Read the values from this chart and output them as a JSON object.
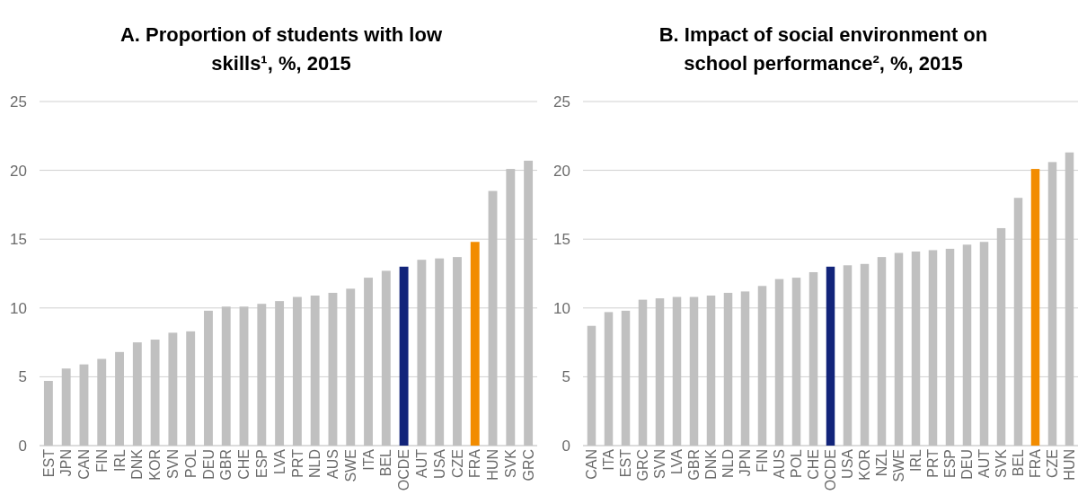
{
  "chart_data": [
    {
      "type": "bar",
      "title": "A.   Proportion of students with low skills¹, %, 2015",
      "categories": [
        "EST",
        "JPN",
        "CAN",
        "FIN",
        "IRL",
        "DNK",
        "KOR",
        "SVN",
        "POL",
        "DEU",
        "GBR",
        "CHE",
        "ESP",
        "LVA",
        "PRT",
        "NLD",
        "AUS",
        "SWE",
        "ITA",
        "BEL",
        "OCDE",
        "AUT",
        "USA",
        "CZE",
        "FRA",
        "HUN",
        "SVK",
        "GRC"
      ],
      "values": [
        4.7,
        5.6,
        5.9,
        6.3,
        6.8,
        7.5,
        7.7,
        8.2,
        8.3,
        9.8,
        10.1,
        10.1,
        10.3,
        10.5,
        10.8,
        10.9,
        11.1,
        11.4,
        12.2,
        12.7,
        13.0,
        13.5,
        13.6,
        13.7,
        14.8,
        18.5,
        20.1,
        20.7
      ],
      "colors": [
        "#c0c0c0",
        "#c0c0c0",
        "#c0c0c0",
        "#c0c0c0",
        "#c0c0c0",
        "#c0c0c0",
        "#c0c0c0",
        "#c0c0c0",
        "#c0c0c0",
        "#c0c0c0",
        "#c0c0c0",
        "#c0c0c0",
        "#c0c0c0",
        "#c0c0c0",
        "#c0c0c0",
        "#c0c0c0",
        "#c0c0c0",
        "#c0c0c0",
        "#c0c0c0",
        "#c0c0c0",
        "#12247a",
        "#c0c0c0",
        "#c0c0c0",
        "#c0c0c0",
        "#f28c00",
        "#c0c0c0",
        "#c0c0c0",
        "#c0c0c0"
      ],
      "ylim": [
        0,
        25
      ],
      "yticks": [
        0,
        5,
        10,
        15,
        20,
        25
      ],
      "grid": "y"
    },
    {
      "type": "bar",
      "title": "B.   Impact of social environment on school performance², %, 2015",
      "categories": [
        "CAN",
        "ITA",
        "EST",
        "GRC",
        "SVN",
        "LVA",
        "GBR",
        "DNK",
        "NLD",
        "JPN",
        "FIN",
        "AUS",
        "POL",
        "CHE",
        "OCDE",
        "USA",
        "KOR",
        "NZL",
        "SWE",
        "IRL",
        "PRT",
        "ESP",
        "DEU",
        "AUT",
        "SVK",
        "BEL",
        "FRA",
        "CZE",
        "HUN"
      ],
      "values": [
        8.7,
        9.7,
        9.8,
        10.6,
        10.7,
        10.8,
        10.8,
        10.9,
        11.1,
        11.2,
        11.6,
        12.1,
        12.2,
        12.6,
        13.0,
        13.1,
        13.2,
        13.7,
        14.0,
        14.1,
        14.2,
        14.3,
        14.6,
        14.8,
        15.8,
        18.0,
        20.1,
        20.6,
        21.3
      ],
      "colors": [
        "#c0c0c0",
        "#c0c0c0",
        "#c0c0c0",
        "#c0c0c0",
        "#c0c0c0",
        "#c0c0c0",
        "#c0c0c0",
        "#c0c0c0",
        "#c0c0c0",
        "#c0c0c0",
        "#c0c0c0",
        "#c0c0c0",
        "#c0c0c0",
        "#c0c0c0",
        "#12247a",
        "#c0c0c0",
        "#c0c0c0",
        "#c0c0c0",
        "#c0c0c0",
        "#c0c0c0",
        "#c0c0c0",
        "#c0c0c0",
        "#c0c0c0",
        "#c0c0c0",
        "#c0c0c0",
        "#c0c0c0",
        "#f28c00",
        "#c0c0c0",
        "#c0c0c0"
      ],
      "ylim": [
        0,
        25
      ],
      "yticks": [
        0,
        5,
        10,
        15,
        20,
        25
      ],
      "grid": "y"
    }
  ]
}
